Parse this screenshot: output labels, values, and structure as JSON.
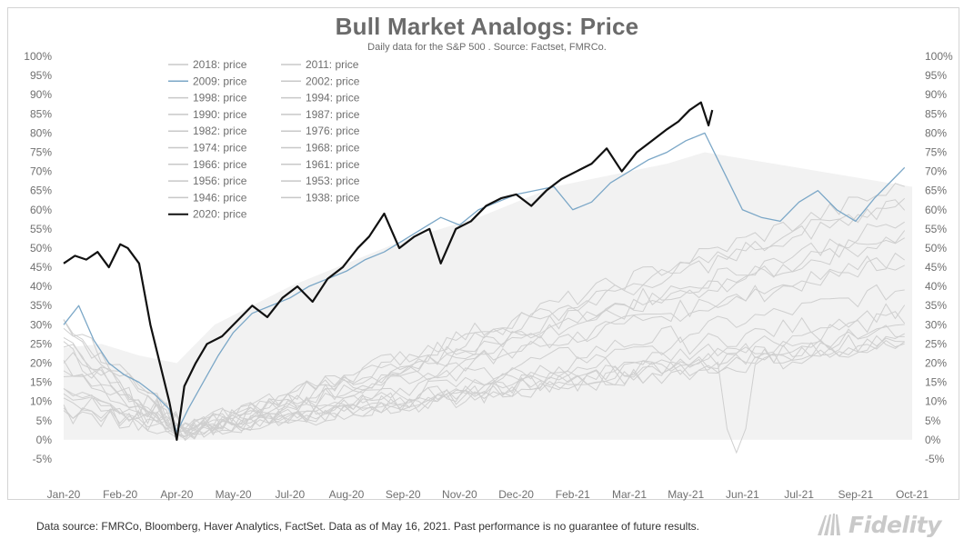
{
  "chart_data": {
    "type": "line",
    "title": "Bull Market Analogs: Price",
    "subtitle": "Daily data for the S&P 500 .  Source: Factset, FMRCo.",
    "ylim": [
      -5,
      100
    ],
    "y_ticks": [
      -5,
      0,
      5,
      10,
      15,
      20,
      25,
      30,
      35,
      40,
      45,
      50,
      55,
      60,
      65,
      70,
      75,
      80,
      85,
      90,
      95,
      100
    ],
    "y_tick_labels": [
      "-5%",
      "0%",
      "5%",
      "10%",
      "15%",
      "20%",
      "25%",
      "30%",
      "35%",
      "40%",
      "45%",
      "50%",
      "55%",
      "60%",
      "65%",
      "70%",
      "75%",
      "80%",
      "85%",
      "90%",
      "95%",
      "100%"
    ],
    "x_tick_labels": [
      "Jan-20",
      "Feb-20",
      "Apr-20",
      "May-20",
      "Jul-20",
      "Aug-20",
      "Sep-20",
      "Nov-20",
      "Dec-20",
      "Feb-21",
      "Mar-21",
      "May-21",
      "Jun-21",
      "Jul-21",
      "Sep-21",
      "Oct-21"
    ],
    "x_tick_values": [
      0,
      1.5,
      3,
      4.5,
      6,
      7.5,
      9,
      10.5,
      12,
      13.5,
      15,
      16.5,
      18,
      19.5,
      21,
      22.5
    ],
    "xlim": [
      0,
      22.5
    ],
    "grid": false,
    "legend": "top-left",
    "legend_entries": [
      "2018: price",
      "2011: price",
      "2009: price",
      "2002: price",
      "1998: price",
      "1994: price",
      "1990: price",
      "1987: price",
      "1982: price",
      "1976: price",
      "1974: price",
      "1968: price",
      "1966: price",
      "1961: price",
      "1956: price",
      "1953: price",
      "1946: price",
      "1938: price",
      "2020: price"
    ],
    "series": [
      {
        "name": "2020: price",
        "color": "#111111",
        "width": 2.2,
        "x": [
          0,
          0.3,
          0.6,
          0.9,
          1.2,
          1.5,
          1.7,
          2.0,
          2.3,
          2.6,
          2.8,
          3.0,
          3.2,
          3.5,
          3.8,
          4.2,
          4.6,
          5.0,
          5.4,
          5.8,
          6.2,
          6.6,
          7.0,
          7.4,
          7.8,
          8.1,
          8.5,
          8.9,
          9.3,
          9.7,
          10.0,
          10.4,
          10.8,
          11.2,
          11.6,
          12.0,
          12.4,
          12.8,
          13.2,
          13.6,
          14.0,
          14.4,
          14.8,
          15.2,
          15.6,
          16.0,
          16.3,
          16.6,
          16.9,
          17.1,
          17.2
        ],
        "y": [
          46,
          48,
          47,
          49,
          45,
          51,
          50,
          46,
          30,
          18,
          10,
          0,
          14,
          20,
          25,
          27,
          31,
          35,
          32,
          37,
          40,
          36,
          42,
          45,
          50,
          53,
          59,
          50,
          53,
          55,
          46,
          55,
          57,
          61,
          63,
          64,
          61,
          65,
          68,
          70,
          72,
          76,
          70,
          75,
          78,
          81,
          83,
          86,
          88,
          82,
          86
        ]
      },
      {
        "name": "2009: price",
        "color": "#7ba7c7",
        "width": 1.3,
        "x": [
          0,
          0.4,
          0.8,
          1.2,
          1.6,
          2.0,
          2.4,
          2.8,
          3.0,
          3.3,
          3.7,
          4.1,
          4.5,
          5.0,
          5.5,
          6.0,
          6.5,
          7.0,
          7.5,
          8.0,
          8.5,
          9.0,
          9.5,
          10.0,
          10.5,
          11.0,
          11.5,
          12.0,
          12.5,
          13.0,
          13.5,
          14.0,
          14.5,
          15.0,
          15.5,
          16.0,
          16.5,
          17.0,
          17.5,
          18.0,
          18.5,
          19.0,
          19.5,
          20.0,
          20.5,
          21.0,
          21.5,
          22.0,
          22.3
        ],
        "y": [
          30,
          35,
          26,
          20,
          17,
          15,
          12,
          8,
          2,
          8,
          15,
          22,
          28,
          33,
          35,
          37,
          40,
          42,
          44,
          47,
          49,
          52,
          55,
          58,
          56,
          60,
          62,
          64,
          65,
          66,
          60,
          62,
          67,
          70,
          73,
          75,
          78,
          80,
          70,
          60,
          58,
          57,
          62,
          65,
          60,
          57,
          63,
          68,
          71
        ]
      }
    ],
    "background_bands": {
      "color": "#f2f2f2",
      "lower": 0,
      "upper_peak": 75
    }
  },
  "footer": {
    "note": "Data source: FMRCo, Bloomberg, Haver Analytics, FactSet. Data as of May 16, 2021. Past performance is no guarantee of future results."
  },
  "brand": {
    "name": "Fidelity"
  }
}
